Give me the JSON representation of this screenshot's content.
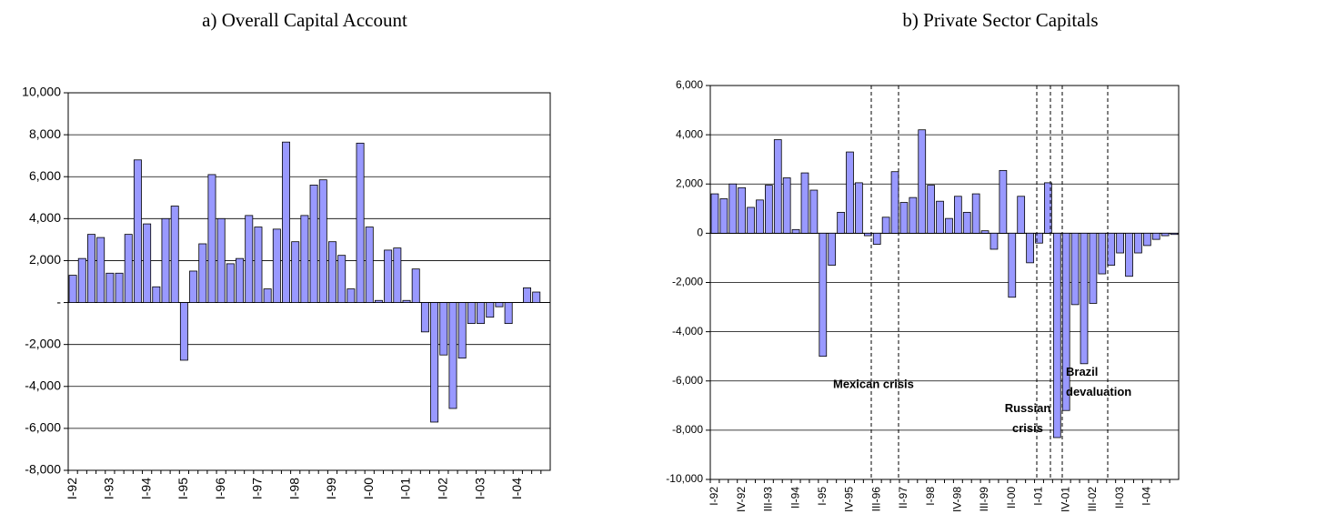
{
  "chart_data": [
    {
      "type": "bar",
      "title": "a) Overall Capital Account",
      "color": "#9999ff",
      "categories": [
        "I-92",
        null,
        null,
        null,
        "I-93",
        null,
        null,
        null,
        "I-94",
        null,
        null,
        null,
        "I-95",
        null,
        null,
        null,
        "I-96",
        null,
        null,
        null,
        "I-97",
        null,
        null,
        null,
        "I-98",
        null,
        null,
        null,
        "I-99",
        null,
        null,
        null,
        "I-00",
        null,
        null,
        null,
        "I-01",
        null,
        null,
        null,
        "I-02",
        null,
        null,
        null,
        "I-03",
        null,
        null,
        null,
        "I-04",
        null,
        null,
        null
      ],
      "values": [
        1300,
        2100,
        3250,
        3100,
        1400,
        1400,
        3250,
        6800,
        3750,
        750,
        4000,
        4600,
        -2750,
        1500,
        2800,
        6100,
        4000,
        1850,
        2100,
        4150,
        3600,
        650,
        3500,
        7650,
        2900,
        4150,
        5600,
        5850,
        2900,
        2250,
        650,
        7600,
        3600,
        100,
        2500,
        2600,
        100,
        1600,
        -1400,
        -5700,
        -2500,
        -5050,
        -2650,
        -1000,
        -1000,
        -700,
        -200,
        -1000,
        0,
        700,
        500,
        0
      ],
      "ylim": [
        -8000,
        10000
      ],
      "yticks": [
        {
          "value": -8000,
          "label": "-8,000"
        },
        {
          "value": -6000,
          "label": "-6,000"
        },
        {
          "value": -4000,
          "label": "-4,000"
        },
        {
          "value": -2000,
          "label": "-2,000"
        },
        {
          "value": 0,
          "label": "-"
        },
        {
          "value": 2000,
          "label": "2,000"
        },
        {
          "value": 4000,
          "label": "4,000"
        },
        {
          "value": 6000,
          "label": "6,000"
        },
        {
          "value": 8000,
          "label": "8,000"
        },
        {
          "value": 10000,
          "label": "10,000"
        }
      ],
      "grid": true
    },
    {
      "type": "bar",
      "title": "b) Private Sector Capitals",
      "color": "#9999ff",
      "categories": [
        "I-92",
        null,
        null,
        "IV-92",
        null,
        null,
        "III-93",
        null,
        null,
        "II-94",
        null,
        null,
        "I-95",
        null,
        null,
        "IV-95",
        null,
        null,
        "III-96",
        null,
        null,
        "II-97",
        null,
        null,
        "I-98",
        null,
        null,
        "IV-98",
        null,
        null,
        "III-99",
        null,
        null,
        "II-00",
        null,
        null,
        "I-01",
        null,
        null,
        "IV-01",
        null,
        null,
        "III-02",
        null,
        null,
        "II-03",
        null,
        null,
        "I-04",
        null,
        null,
        null
      ],
      "values": [
        1600,
        1400,
        2000,
        1850,
        1050,
        1350,
        1950,
        3800,
        2250,
        150,
        2450,
        1750,
        -5000,
        -1300,
        850,
        3300,
        2050,
        -100,
        -450,
        650,
        2500,
        1250,
        1450,
        4200,
        1950,
        1300,
        600,
        1500,
        850,
        1600,
        100,
        -650,
        2550,
        -2600,
        1500,
        -1200,
        -400,
        2050,
        -8300,
        -7200,
        -2900,
        -5300,
        -2850,
        -1650,
        -1300,
        -800,
        -1750,
        -800,
        -500,
        -250,
        -100,
        -50
      ],
      "ylim": [
        -10000,
        6000
      ],
      "yticks": [
        {
          "value": -10000,
          "label": "-10,000"
        },
        {
          "value": -8000,
          "label": "-8,000"
        },
        {
          "value": -6000,
          "label": "-6,000"
        },
        {
          "value": -4000,
          "label": "-4,000"
        },
        {
          "value": -2000,
          "label": "-2,000"
        },
        {
          "value": 0,
          "label": "0"
        },
        {
          "value": 2000,
          "label": "2,000"
        },
        {
          "value": 4000,
          "label": "4,000"
        },
        {
          "value": 6000,
          "label": "6,000"
        }
      ],
      "grid": true,
      "annotations": [
        "Mexican crisis",
        "Russian crisis",
        "Brazil devaluation"
      ]
    }
  ]
}
